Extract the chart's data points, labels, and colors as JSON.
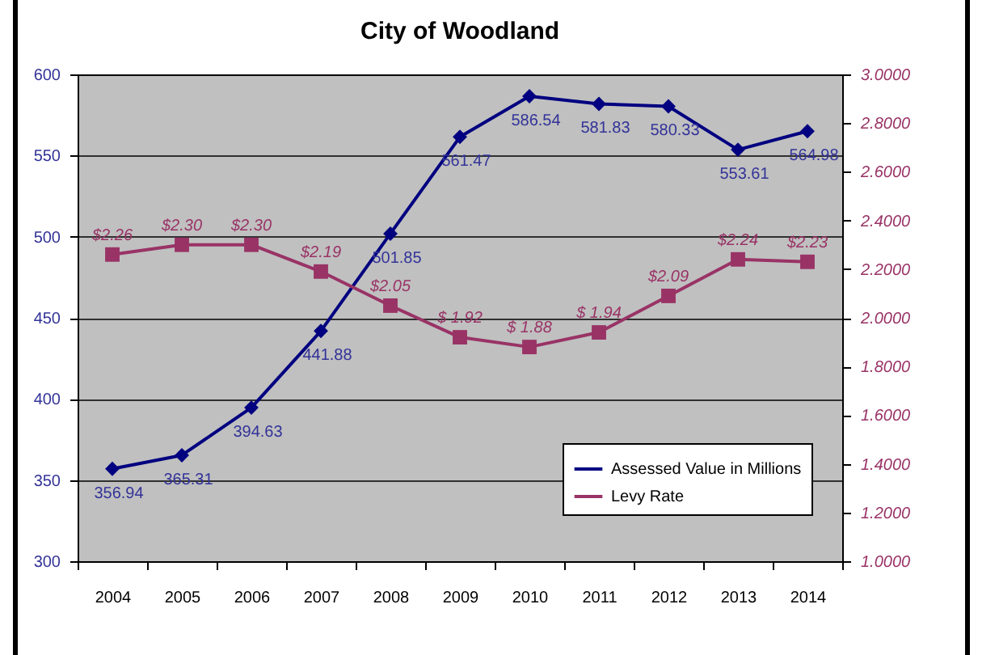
{
  "chart_data": {
    "type": "line",
    "title": "City of Woodland",
    "categories": [
      "2004",
      "2005",
      "2006",
      "2007",
      "2008",
      "2009",
      "2010",
      "2011",
      "2012",
      "2013",
      "2014"
    ],
    "series": [
      {
        "name": "Assessed Value in Millions",
        "color": "#000080",
        "marker": "diamond",
        "values": [
          356.94,
          365.31,
          394.63,
          441.88,
          501.85,
          561.47,
          586.54,
          581.83,
          580.33,
          553.61,
          564.98
        ],
        "value_labels": [
          "356.94",
          "365.31",
          "394.63",
          "441.88",
          "501.85",
          "561.47",
          "586.54",
          "581.83",
          "580.33",
          "553.61",
          "564.98"
        ]
      },
      {
        "name": "Levy Rate",
        "color": "#993366",
        "marker": "square",
        "axis": "y2",
        "values": [
          2.26,
          2.3,
          2.3,
          2.19,
          2.05,
          1.92,
          1.88,
          1.94,
          2.09,
          2.24,
          2.23
        ],
        "value_labels": [
          "$2.26",
          "$2.30",
          "$2.30",
          "$2.19",
          "$2.05",
          "$ 1.92",
          "$ 1.88",
          "$ 1.94",
          "$2.09",
          "$2.24",
          "$2.23"
        ]
      }
    ],
    "ylim": [
      300,
      600
    ],
    "yticks": [
      300,
      350,
      400,
      450,
      500,
      550,
      600
    ],
    "y2lim": [
      1,
      3
    ],
    "y2ticks": [
      {
        "value": 1,
        "label": "1.0000"
      },
      {
        "value": 1.2,
        "label": "1.2000"
      },
      {
        "value": 1.4,
        "label": "1.4000"
      },
      {
        "value": 1.6,
        "label": "1.6000"
      },
      {
        "value": 1.8,
        "label": "1.8000"
      },
      {
        "value": 2,
        "label": "2.0000"
      },
      {
        "value": 2.2,
        "label": "2.2000"
      },
      {
        "value": 2.4,
        "label": "2.4000"
      },
      {
        "value": 2.6,
        "label": "2.6000"
      },
      {
        "value": 2.8,
        "label": "2.8000"
      },
      {
        "value": 3,
        "label": "3.0000"
      }
    ],
    "grid": "y",
    "legend": "bottom right"
  }
}
